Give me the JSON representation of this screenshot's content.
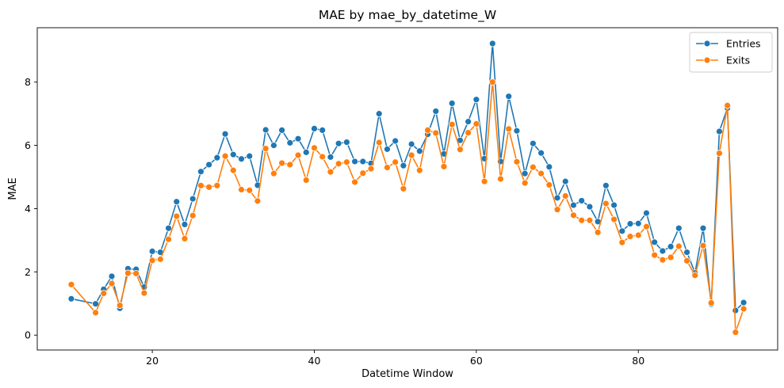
{
  "chart_data": {
    "type": "line",
    "title": "MAE by mae_by_datetime_W",
    "xlabel": "Datetime Window",
    "ylabel": "MAE",
    "xlim": [
      5.8,
      97.2
    ],
    "ylim": [
      -0.47,
      9.72
    ],
    "xticks": [
      20,
      40,
      60,
      80
    ],
    "yticks": [
      0,
      2,
      4,
      6,
      8
    ],
    "grid": false,
    "legend_position": "top-right",
    "colors": {
      "Entries": "#1f77b4",
      "Exits": "#ff7f0e"
    },
    "x": [
      10,
      13,
      14,
      15,
      16,
      17,
      18,
      19,
      20,
      21,
      22,
      23,
      24,
      25,
      26,
      27,
      28,
      29,
      30,
      31,
      32,
      33,
      34,
      35,
      36,
      37,
      38,
      39,
      40,
      41,
      42,
      43,
      44,
      45,
      46,
      47,
      48,
      49,
      50,
      51,
      52,
      53,
      54,
      55,
      56,
      57,
      58,
      59,
      60,
      61,
      62,
      63,
      64,
      65,
      66,
      67,
      68,
      69,
      70,
      71,
      72,
      73,
      74,
      75,
      76,
      77,
      78,
      79,
      80,
      81,
      82,
      83,
      84,
      85,
      86,
      87,
      88,
      89,
      90,
      91,
      92,
      93
    ],
    "series": [
      {
        "name": "Entries",
        "values": [
          1.15,
          0.99,
          1.45,
          1.86,
          0.85,
          2.1,
          2.08,
          1.52,
          2.65,
          2.62,
          3.38,
          4.22,
          3.5,
          4.31,
          5.17,
          5.39,
          5.61,
          6.36,
          5.71,
          5.57,
          5.66,
          4.74,
          6.49,
          6.0,
          6.48,
          6.08,
          6.21,
          5.78,
          6.53,
          6.48,
          5.63,
          6.06,
          6.1,
          5.49,
          5.49,
          5.43,
          7.0,
          5.88,
          6.14,
          5.36,
          6.04,
          5.82,
          6.35,
          7.08,
          5.73,
          7.33,
          6.16,
          6.75,
          7.45,
          5.58,
          9.22,
          5.49,
          7.55,
          6.46,
          5.11,
          6.06,
          5.76,
          5.32,
          4.34,
          4.86,
          4.11,
          4.25,
          4.06,
          3.59,
          4.73,
          4.11,
          3.29,
          3.52,
          3.53,
          3.86,
          2.94,
          2.66,
          2.8,
          3.38,
          2.62,
          1.97,
          3.38,
          0.98,
          6.44,
          7.18,
          0.78,
          1.03
        ]
      },
      {
        "name": "Exits",
        "values": [
          1.6,
          0.71,
          1.32,
          1.63,
          0.94,
          1.96,
          1.95,
          1.33,
          2.36,
          2.4,
          3.03,
          3.76,
          3.05,
          3.78,
          4.73,
          4.68,
          4.73,
          5.66,
          5.21,
          4.6,
          4.58,
          4.24,
          5.9,
          5.11,
          5.44,
          5.39,
          5.69,
          4.9,
          5.92,
          5.64,
          5.16,
          5.42,
          5.47,
          4.84,
          5.12,
          5.26,
          6.09,
          5.3,
          5.47,
          4.63,
          5.69,
          5.21,
          6.48,
          6.39,
          5.33,
          6.66,
          5.87,
          6.4,
          6.68,
          4.86,
          8.0,
          4.94,
          6.52,
          5.48,
          4.81,
          5.31,
          5.11,
          4.75,
          3.97,
          4.4,
          3.79,
          3.63,
          3.63,
          3.25,
          4.16,
          3.66,
          2.93,
          3.12,
          3.16,
          3.43,
          2.53,
          2.38,
          2.46,
          2.81,
          2.35,
          1.89,
          2.83,
          1.02,
          5.75,
          7.26,
          0.09,
          0.83
        ]
      }
    ]
  }
}
